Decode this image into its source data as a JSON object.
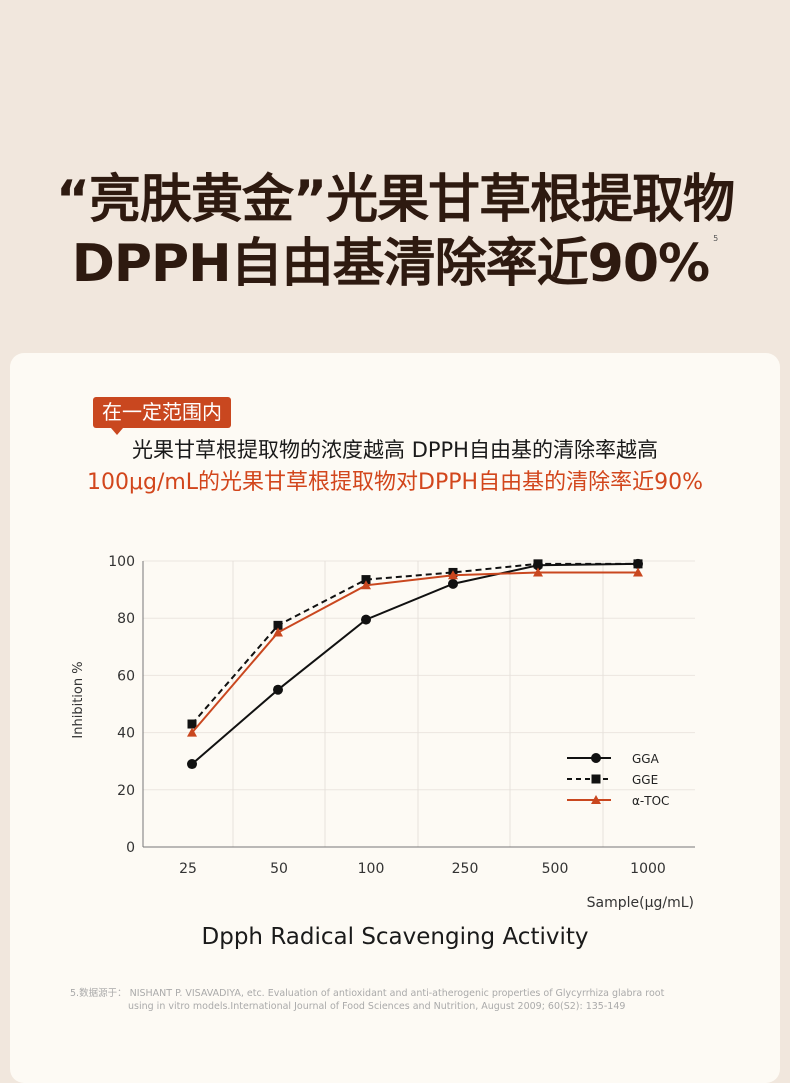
{
  "header": {
    "line1": "“亮肤黄金”光果甘草根提取物",
    "line2": "DPPH自由基清除率近90%",
    "footnote_mark": "5"
  },
  "card": {
    "tag": "在一定范围内",
    "line1": "光果甘草根提取物的浓度越高 DPPH自由基的清除率越高",
    "line2": "100μg/mL的光果甘草根提取物对DPPH自由基的清除率近90%",
    "caption": "Dpph Radical Scavenging Activity",
    "footnote1": "5.数据源于：  NISHANT P. VISAVADIYA, etc. Evaluation of antioxidant and anti-atherogenic properties of Glycyrrhiza glabra root",
    "footnote2": "using in vitro models.International Journal of Food Sciences and Nutrition, August 2009; 60(S2): 135-149"
  },
  "chart_data": {
    "type": "line",
    "title": "Dpph Radical Scavenging Activity",
    "xlabel": "Sample(μg/mL)",
    "ylabel": "Inhibition %",
    "categories": [
      "25",
      "50",
      "100",
      "250",
      "500",
      "1000"
    ],
    "ylim": [
      0,
      100
    ],
    "yticks": [
      "0",
      "20",
      "40",
      "60",
      "80",
      "100"
    ],
    "grid": true,
    "legend": "bottom-right",
    "series": [
      {
        "name": "GGA",
        "values": [
          29,
          55,
          79.5,
          92,
          98.5,
          99
        ],
        "color": "#111111",
        "marker": "circle",
        "dash": false
      },
      {
        "name": "GGE",
        "values": [
          43,
          77.5,
          93.5,
          96,
          99,
          99
        ],
        "color": "#111111",
        "marker": "square",
        "dash": true
      },
      {
        "name": "α-TOC",
        "values": [
          40,
          75,
          91.5,
          95,
          96,
          96
        ],
        "color": "#c9471f",
        "marker": "triangle",
        "dash": false
      }
    ]
  }
}
